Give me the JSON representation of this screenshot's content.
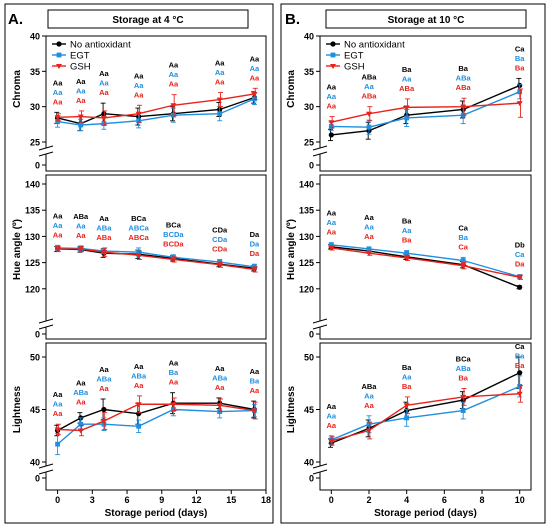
{
  "figure": {
    "colors": {
      "none": "#000000",
      "egt": "#1f8fe0",
      "gsh": "#e8231c"
    },
    "legend": [
      "No antioxidant",
      "EGT",
      "GSH"
    ]
  },
  "chart_data": [
    {
      "type": "line",
      "panel_label": "A.",
      "title": "Storage at 4 °C",
      "xlabel": "Storage period (days)",
      "x_ticks": [
        "0",
        "3",
        "6",
        "9",
        "12",
        "15",
        "18"
      ],
      "xlim": [
        -1,
        18
      ],
      "x": [
        0,
        2,
        4,
        7,
        10,
        14,
        17
      ],
      "legend_position": "top-left",
      "subplots": [
        {
          "ylabel": "Chroma",
          "ylim": [
            25,
            40
          ],
          "y_ticks": [
            "25",
            "30",
            "35",
            "40"
          ],
          "series": [
            {
              "name": "No antioxidant",
              "values": [
                28.4,
                27.6,
                29.0,
                28.6,
                29.0,
                29.6,
                31.3
              ],
              "errors": [
                0.8,
                1.0,
                1.5,
                1.2,
                1.0,
                1.0,
                0.8
              ]
            },
            {
              "name": "EGT",
              "values": [
                27.9,
                27.4,
                27.6,
                28.0,
                28.8,
                29.0,
                31.1
              ],
              "errors": [
                0.8,
                0.8,
                0.8,
                1.0,
                1.0,
                1.0,
                0.8
              ]
            },
            {
              "name": "GSH",
              "values": [
                28.5,
                28.6,
                28.4,
                29.0,
                30.2,
                31.0,
                31.8
              ],
              "errors": [
                0.5,
                0.8,
                1.0,
                1.2,
                1.5,
                1.0,
                0.8
              ]
            }
          ],
          "letters": [
            [
              "Aa",
              "Aa",
              "Aa",
              "Aa",
              "Aa",
              "Aa",
              "Aa"
            ],
            [
              "Aa",
              "Aa",
              "Aa",
              "Aa",
              "Aa",
              "Aa",
              "Aa"
            ],
            [
              "Aa",
              "Aa",
              "Aa",
              "Aa",
              "Aa",
              "Aa",
              "Aa"
            ]
          ]
        },
        {
          "ylabel": "Hue angle (º)",
          "ylim": [
            115,
            140
          ],
          "y_ticks": [
            "120",
            "125",
            "130",
            "135",
            "140"
          ],
          "series": [
            {
              "name": "No antioxidant",
              "values": [
                127.6,
                127.5,
                126.8,
                126.6,
                125.8,
                124.7,
                123.9
              ],
              "errors": [
                0.5,
                0.5,
                0.8,
                0.8,
                0.5,
                0.5,
                0.5
              ]
            },
            {
              "name": "EGT",
              "values": [
                127.8,
                127.7,
                127.2,
                127.0,
                126.0,
                125.1,
                124.2
              ],
              "errors": [
                0.5,
                0.5,
                0.5,
                0.8,
                0.5,
                0.5,
                0.5
              ]
            },
            {
              "name": "GSH",
              "values": [
                127.6,
                127.6,
                127.0,
                126.4,
                125.6,
                124.6,
                123.7
              ],
              "errors": [
                0.5,
                0.5,
                0.8,
                0.8,
                0.5,
                0.5,
                0.5
              ]
            }
          ],
          "letters": [
            [
              "Aa",
              "ABa",
              "Aa",
              "BCa",
              "BCa",
              "CDa",
              "Da"
            ],
            [
              "Aa",
              "Aa",
              "ABa",
              "ABCa",
              "BCDa",
              "CDa",
              "Da"
            ],
            [
              "Aa",
              "Aa",
              "ABa",
              "ABCa",
              "BCDa",
              "CDa",
              "Da"
            ]
          ]
        },
        {
          "ylabel": "Lightness",
          "ylim": [
            40,
            50
          ],
          "y_ticks": [
            "40",
            "45",
            "50"
          ],
          "series": [
            {
              "name": "No antioxidant",
              "values": [
                43.0,
                44.2,
                45.0,
                44.6,
                45.6,
                45.6,
                45.0
              ],
              "errors": [
                0.5,
                0.5,
                1.0,
                1.0,
                1.0,
                0.5,
                0.8
              ]
            },
            {
              "name": "EGT",
              "values": [
                41.7,
                43.6,
                43.6,
                43.4,
                45.0,
                44.8,
                44.9
              ],
              "errors": [
                1.0,
                0.6,
                0.6,
                0.6,
                0.6,
                0.6,
                0.6
              ]
            },
            {
              "name": "GSH",
              "values": [
                43.1,
                43.0,
                43.9,
                45.5,
                45.5,
                45.4,
                44.9
              ],
              "errors": [
                0.5,
                0.5,
                0.8,
                0.8,
                0.6,
                0.6,
                0.8
              ]
            }
          ],
          "letters": [
            [
              "Aa",
              "Aa",
              "Aa",
              "Aa",
              "Aa",
              "Aa",
              "Aa"
            ],
            [
              "Aa",
              "ABa",
              "ABa",
              "ABa",
              "Ba",
              "ABa",
              "Ba"
            ],
            [
              "Aa",
              "Aa",
              "Aa",
              "Aa",
              "Aa",
              "Aa",
              "Aa"
            ]
          ]
        }
      ]
    },
    {
      "type": "line",
      "panel_label": "B.",
      "title": "Storage at 10 °C",
      "xlabel": "Storage period (days)",
      "x_ticks": [
        "0",
        "2",
        "4",
        "6",
        "8",
        "10"
      ],
      "xlim": [
        -0.6,
        10.6
      ],
      "x": [
        0,
        2,
        4,
        7,
        10
      ],
      "legend_position": "top-left",
      "subplots": [
        {
          "ylabel": "Chroma",
          "ylim": [
            25,
            40
          ],
          "y_ticks": [
            "25",
            "30",
            "35",
            "40"
          ],
          "series": [
            {
              "name": "No antioxidant",
              "values": [
                26.0,
                26.6,
                28.8,
                29.6,
                33.0
              ],
              "errors": [
                0.8,
                1.2,
                1.2,
                1.2,
                1.0
              ]
            },
            {
              "name": "EGT",
              "values": [
                27.2,
                27.1,
                28.4,
                28.8,
                32.1
              ],
              "errors": [
                0.6,
                1.0,
                1.2,
                1.2,
                1.0
              ]
            },
            {
              "name": "GSH",
              "values": [
                27.8,
                29.0,
                29.9,
                30.0,
                30.5
              ],
              "errors": [
                0.8,
                1.0,
                1.2,
                1.2,
                2.0
              ]
            }
          ],
          "letters": [
            [
              "Aa",
              "ABa",
              "Ba",
              "Ba",
              "Ca"
            ],
            [
              "Aa",
              "Aa",
              "Aa",
              "ABa",
              "Ba"
            ],
            [
              "Aa",
              "ABa",
              "ABa",
              "ABa",
              "Ba"
            ]
          ]
        },
        {
          "ylabel": "Hue angle (º)",
          "ylim": [
            115,
            140
          ],
          "y_ticks": [
            "120",
            "125",
            "130",
            "135",
            "140"
          ],
          "series": [
            {
              "name": "No antioxidant",
              "values": [
                128.0,
                127.2,
                126.1,
                124.6,
                120.3
              ],
              "errors": [
                0.4,
                0.4,
                0.5,
                0.6,
                0.3
              ]
            },
            {
              "name": "EGT",
              "values": [
                128.4,
                127.6,
                126.8,
                125.4,
                122.3
              ],
              "errors": [
                0.4,
                0.4,
                0.5,
                0.6,
                0.4
              ]
            },
            {
              "name": "GSH",
              "values": [
                127.8,
                126.8,
                125.9,
                124.4,
                122.2
              ],
              "errors": [
                0.4,
                0.4,
                0.5,
                0.6,
                0.4
              ]
            }
          ],
          "letters": [
            [
              "Aa",
              "Aa",
              "Ba",
              "Ca",
              "Db"
            ],
            [
              "Aa",
              "Aa",
              "Aa",
              "Ba",
              "Ca"
            ],
            [
              "Aa",
              "Aa",
              "Ba",
              "Ca",
              "Da"
            ]
          ]
        },
        {
          "ylabel": "Lightness",
          "ylim": [
            40,
            50
          ],
          "y_ticks": [
            "40",
            "45",
            "50"
          ],
          "series": [
            {
              "name": "No antioxidant",
              "values": [
                41.8,
                43.2,
                44.9,
                45.9,
                48.5
              ],
              "errors": [
                0.4,
                0.8,
                0.8,
                0.8,
                1.5
              ]
            },
            {
              "name": "EGT",
              "values": [
                42.1,
                43.6,
                44.2,
                44.9,
                47.2
              ],
              "errors": [
                0.4,
                0.8,
                0.8,
                0.8,
                1.0
              ]
            },
            {
              "name": "GSH",
              "values": [
                42.0,
                43.0,
                45.4,
                46.2,
                46.5
              ],
              "errors": [
                0.4,
                0.8,
                0.8,
                0.8,
                0.8
              ]
            }
          ],
          "letters": [
            [
              "Aa",
              "ABa",
              "Ba",
              "BCa",
              "Ca"
            ],
            [
              "Aa",
              "Aa",
              "Aa",
              "ABa",
              "Ba"
            ],
            [
              "Aa",
              "Aa",
              "Ba",
              "Ba",
              "Ba"
            ]
          ]
        }
      ]
    }
  ]
}
